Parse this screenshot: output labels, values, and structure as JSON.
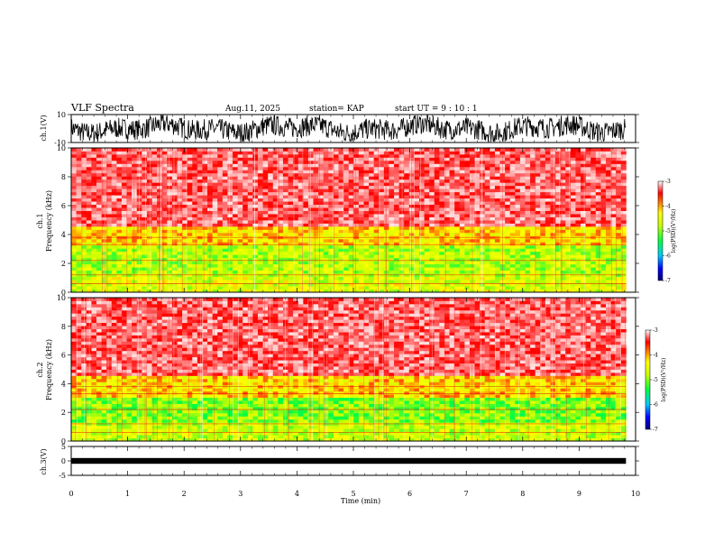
{
  "header": {
    "title": "VLF Spectra",
    "date": "Aug.11, 2025",
    "station": "station= KAP",
    "start": "start  UT =   9 : 10 : 1"
  },
  "chart_data": [
    {
      "type": "line",
      "name": "ch1-waveform",
      "ylabel": "ch.1(V)",
      "ylim": [
        -10,
        10
      ],
      "yticks": [
        "10",
        "-10"
      ],
      "x_range_min": [
        0,
        9.83
      ],
      "style": "dense noisy oscillation spanning most of range"
    },
    {
      "type": "heatmap",
      "name": "ch1-spectrogram",
      "ylabel_top": "ch.1",
      "ylabel": "Frequency (kHz)",
      "ylim": [
        0,
        10
      ],
      "yticks": [
        "0",
        "2",
        "4",
        "6",
        "8",
        "10"
      ],
      "colorbar": {
        "label": "log(PSD)(V²/Hz)",
        "ticks": [
          "-3",
          "-4",
          "-5",
          "-6",
          "-7"
        ],
        "range": [
          -7,
          -3
        ]
      },
      "bands_khz": [
        {
          "from": 0.0,
          "to": 1.0,
          "level": -4.6
        },
        {
          "from": 1.0,
          "to": 3.3,
          "level": -4.8
        },
        {
          "from": 3.3,
          "to": 4.5,
          "level": -4.2
        },
        {
          "from": 4.5,
          "to": 10.0,
          "level": -3.5
        }
      ]
    },
    {
      "type": "heatmap",
      "name": "ch2-spectrogram",
      "ylabel_top": "ch.2",
      "ylabel": "Frequency (kHz)",
      "ylim": [
        0,
        10
      ],
      "yticks": [
        "0",
        "2",
        "4",
        "6",
        "8",
        "10"
      ],
      "colorbar": {
        "label": "log(PSD)(V²/Hz)",
        "ticks": [
          "-3",
          "-4",
          "-5",
          "-6",
          "-7"
        ],
        "range": [
          -7,
          -3
        ]
      },
      "bands_khz": [
        {
          "from": 0.0,
          "to": 1.2,
          "level": -4.7
        },
        {
          "from": 1.2,
          "to": 3.0,
          "level": -5.0
        },
        {
          "from": 3.0,
          "to": 4.5,
          "level": -4.2
        },
        {
          "from": 4.5,
          "to": 10.0,
          "level": -3.5
        }
      ]
    },
    {
      "type": "line",
      "name": "ch3-waveform",
      "ylabel": "ch.3(V)",
      "ylim": [
        -5,
        5
      ],
      "yticks": [
        "5",
        "0",
        "-5"
      ],
      "band_v": [
        -1.0,
        1.0
      ],
      "x_range_min": [
        0,
        9.83
      ]
    }
  ],
  "xaxis": {
    "label": "Time (min)",
    "ticks": [
      "0",
      "1",
      "2",
      "3",
      "4",
      "5",
      "6",
      "7",
      "8",
      "9",
      "10"
    ],
    "range": [
      0,
      10
    ]
  }
}
